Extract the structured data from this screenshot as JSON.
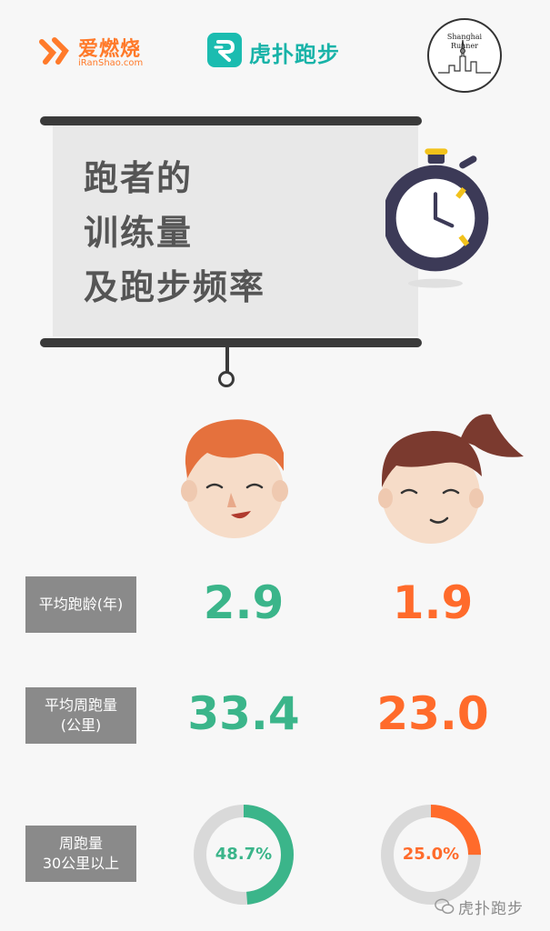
{
  "logos": {
    "iranshao_name": "爱燃烧",
    "iranshao_url": "iRanShao.com",
    "hupu_name": "虎扑跑步",
    "shanghai_line1": "Shanghai",
    "shanghai_line2": "Runner"
  },
  "board": {
    "title_lines": [
      "跑者的",
      "训练量",
      "及跑步频率"
    ]
  },
  "icons": {
    "stopwatch": "stopwatch-icon",
    "male_runner": "male-face-icon",
    "female_runner": "female-face-icon"
  },
  "colors": {
    "male": "#3bb58a",
    "female": "#ff6b2b",
    "ring_track": "#d9d9d9"
  },
  "stats": {
    "avg_years": {
      "label": "平均跑龄(年)",
      "male": "2.9",
      "female": "1.9"
    },
    "avg_weekly": {
      "label_line1": "平均周跑量",
      "label_line2": "(公里)",
      "male": "33.4",
      "female": "23.0"
    },
    "weekly_over_30": {
      "label_line1": "周跑量",
      "label_line2": "30公里以上",
      "male": "48.7%",
      "female": "25.0%",
      "male_fraction": 0.487,
      "female_fraction": 0.25
    }
  },
  "watermark": {
    "text": "虎扑跑步"
  }
}
